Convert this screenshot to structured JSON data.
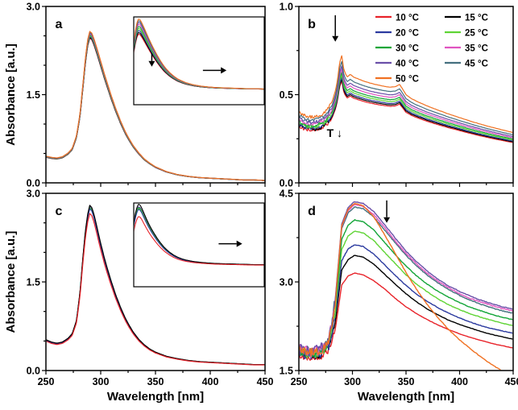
{
  "figure": {
    "xlabel": "Wavelength [nm]",
    "ylabel": "Absorbance [a.u.]",
    "background": "#ffffff"
  },
  "temperatures": [
    "10 °C",
    "15 °C",
    "20 °C",
    "25 °C",
    "30 °C",
    "35 °C",
    "40 °C",
    "45 °C",
    "50 °C"
  ],
  "colors": {
    "t10": "#e8232a",
    "t15": "#000000",
    "t20": "#2b3a9f",
    "t25": "#5fd435",
    "t30": "#13a538",
    "t35": "#e054c0",
    "t40": "#6a4fa8",
    "t45": "#44707f",
    "t50": "#f07122"
  },
  "chart_data": [
    {
      "id": "a",
      "label": "a",
      "type": "line",
      "xlabel": "Wavelength [nm]",
      "ylabel": "Absorbance [a.u.]",
      "xlim": [
        250,
        450
      ],
      "ylim": [
        0,
        3.0
      ],
      "xticks": [
        250,
        300,
        350,
        400,
        450
      ],
      "xminor": 25,
      "yticks": [
        0.0,
        1.5,
        3.0
      ],
      "ytick_labels": [
        "0.0",
        "1.5",
        "3.0"
      ],
      "yminor": 0.5,
      "show_xtick_labels": false,
      "x": [
        250,
        255,
        260,
        265,
        270,
        274,
        278,
        281,
        284,
        286,
        288,
        290,
        292,
        294,
        296,
        298,
        300,
        303,
        306,
        310,
        314,
        318,
        322,
        326,
        330,
        335,
        340,
        345,
        350,
        360,
        370,
        380,
        390,
        400,
        410,
        420,
        430,
        440,
        450
      ],
      "base_values": [
        0.45,
        0.43,
        0.42,
        0.44,
        0.5,
        0.58,
        0.8,
        1.15,
        1.7,
        2.1,
        2.4,
        2.55,
        2.52,
        2.42,
        2.3,
        2.18,
        2.05,
        1.86,
        1.68,
        1.45,
        1.24,
        1.05,
        0.88,
        0.74,
        0.62,
        0.5,
        0.4,
        0.33,
        0.27,
        0.19,
        0.14,
        0.11,
        0.09,
        0.08,
        0.07,
        0.06,
        0.05,
        0.05,
        0.04
      ],
      "series": [
        {
          "name": "10 °C",
          "color": "#e8232a",
          "scale": 0.965
        },
        {
          "name": "15 °C",
          "color": "#000000",
          "scale": 0.97
        },
        {
          "name": "20 °C",
          "color": "#2b3a9f",
          "scale": 0.976
        },
        {
          "name": "25 °C",
          "color": "#5fd435",
          "scale": 0.982
        },
        {
          "name": "30 °C",
          "color": "#13a538",
          "scale": 0.988
        },
        {
          "name": "35 °C",
          "color": "#e054c0",
          "scale": 0.994
        },
        {
          "name": "40 °C",
          "color": "#6a4fa8",
          "scale": 1.0
        },
        {
          "name": "45 °C",
          "color": "#44707f",
          "scale": 1.005
        },
        {
          "name": "50 °C",
          "color": "#f07122",
          "scale": 1.01
        }
      ],
      "inset": {
        "xlim": [
          284,
          450
        ],
        "ylim": [
          -0.55,
          2.75
        ],
        "spread_mult": 5,
        "annotations": [
          {
            "type": "arrow",
            "x1": 307,
            "y1": 1.38,
            "x2": 307,
            "y2": 0.88
          },
          {
            "type": "arrow",
            "x1": 372,
            "y1": 0.74,
            "x2": 402,
            "y2": 0.74
          }
        ]
      },
      "annotations": []
    },
    {
      "id": "b",
      "label": "b",
      "type": "line",
      "xlabel": "Wavelength [nm]",
      "ylabel": "Absorbance [a.u.]",
      "xlim": [
        250,
        450
      ],
      "ylim": [
        0,
        1.0
      ],
      "xticks": [
        250,
        300,
        350,
        400,
        450
      ],
      "xminor": 25,
      "yticks": [
        0.0,
        0.5,
        1.0
      ],
      "ytick_labels": [
        "0.0",
        "0.5",
        "1.0"
      ],
      "yminor": 0.25,
      "show_xtick_labels": false,
      "x": [
        250,
        254,
        258,
        262,
        266,
        270,
        274,
        278,
        281,
        284,
        286,
        288,
        290,
        292,
        295,
        298,
        301,
        305,
        310,
        315,
        320,
        325,
        330,
        335,
        340,
        344,
        347,
        350,
        355,
        360,
        370,
        380,
        390,
        400,
        410,
        420,
        430,
        440,
        450
      ],
      "base_values": [
        0.4,
        0.385,
        0.375,
        0.372,
        0.375,
        0.385,
        0.4,
        0.43,
        0.46,
        0.52,
        0.58,
        0.68,
        0.72,
        0.64,
        0.6,
        0.615,
        0.6,
        0.59,
        0.578,
        0.568,
        0.56,
        0.553,
        0.547,
        0.542,
        0.545,
        0.558,
        0.53,
        0.5,
        0.478,
        0.462,
        0.435,
        0.412,
        0.39,
        0.37,
        0.35,
        0.332,
        0.315,
        0.3,
        0.285
      ],
      "series": [
        {
          "name": "10 °C",
          "color": "#e8232a",
          "scale": 0.8,
          "noise": {
            "amp": 0.01,
            "below": 280
          }
        },
        {
          "name": "15 °C",
          "color": "#000000",
          "scale": 0.815,
          "noise": {
            "amp": 0.01,
            "below": 280
          }
        },
        {
          "name": "20 °C",
          "color": "#2b3a9f",
          "scale": 0.83,
          "noise": {
            "amp": 0.01,
            "below": 280
          }
        },
        {
          "name": "25 °C",
          "color": "#5fd435",
          "scale": 0.85,
          "noise": {
            "amp": 0.01,
            "below": 280
          }
        },
        {
          "name": "30 °C",
          "color": "#13a538",
          "scale": 0.87,
          "noise": {
            "amp": 0.01,
            "below": 280
          }
        },
        {
          "name": "35 °C",
          "color": "#e054c0",
          "scale": 0.895,
          "noise": {
            "amp": 0.01,
            "below": 280
          }
        },
        {
          "name": "40 °C",
          "color": "#6a4fa8",
          "scale": 0.92,
          "noise": {
            "amp": 0.01,
            "below": 280
          }
        },
        {
          "name": "45 °C",
          "color": "#44707f",
          "scale": 0.955,
          "noise": {
            "amp": 0.01,
            "below": 280
          }
        },
        {
          "name": "50 °C",
          "color": "#f07122",
          "scale": 1.0,
          "noise": {
            "amp": 0.01,
            "below": 280
          }
        }
      ],
      "legend": {
        "items": [
          {
            "label": "10 °C",
            "color": "#e8232a"
          },
          {
            "label": "15 °C",
            "color": "#000000"
          },
          {
            "label": "20 °C",
            "color": "#2b3a9f"
          },
          {
            "label": "25 °C",
            "color": "#5fd435"
          },
          {
            "label": "30 °C",
            "color": "#13a538"
          },
          {
            "label": "35 °C",
            "color": "#e054c0"
          },
          {
            "label": "40 °C",
            "color": "#6a4fa8"
          },
          {
            "label": "45 °C",
            "color": "#44707f"
          },
          {
            "label": "50 °C",
            "color": "#f07122"
          }
        ]
      },
      "annotations": [
        {
          "type": "arrow",
          "x1": 284,
          "y1": 0.95,
          "x2": 284,
          "y2": 0.8
        },
        {
          "type": "text",
          "x": 276,
          "y": 0.26,
          "text": "T ↓"
        }
      ]
    },
    {
      "id": "c",
      "label": "c",
      "type": "line",
      "xlabel": "Wavelength [nm]",
      "ylabel": "Absorbance [a.u.]",
      "xlim": [
        250,
        450
      ],
      "ylim": [
        0,
        3.0
      ],
      "xticks": [
        250,
        300,
        350,
        400,
        450
      ],
      "xminor": 25,
      "yticks": [
        0.0,
        1.5,
        3.0
      ],
      "ytick_labels": [
        "0.0",
        "1.5",
        "3.0"
      ],
      "yminor": 0.5,
      "show_xtick_labels": true,
      "x": [
        250,
        255,
        260,
        265,
        270,
        274,
        278,
        281,
        284,
        286,
        288,
        290,
        292,
        294,
        296,
        298,
        300,
        303,
        306,
        310,
        314,
        318,
        322,
        326,
        330,
        335,
        340,
        345,
        350,
        360,
        370,
        380,
        390,
        400,
        410,
        420,
        430,
        440,
        450
      ],
      "base_values": [
        0.52,
        0.48,
        0.46,
        0.48,
        0.54,
        0.62,
        0.85,
        1.3,
        1.95,
        2.35,
        2.62,
        2.78,
        2.74,
        2.62,
        2.46,
        2.3,
        2.14,
        1.92,
        1.72,
        1.48,
        1.26,
        1.07,
        0.9,
        0.76,
        0.64,
        0.52,
        0.43,
        0.36,
        0.31,
        0.24,
        0.2,
        0.17,
        0.15,
        0.14,
        0.13,
        0.12,
        0.11,
        0.1,
        0.1
      ],
      "series": [
        {
          "name": "50 °C",
          "color": "#f07122",
          "scale": 0.995
        },
        {
          "name": "45 °C",
          "color": "#44707f",
          "scale": 0.993
        },
        {
          "name": "40 °C",
          "color": "#6a4fa8",
          "scale": 0.996
        },
        {
          "name": "35 °C",
          "color": "#e054c0",
          "scale": 0.99
        },
        {
          "name": "30 °C",
          "color": "#13a538",
          "scale": 0.992
        },
        {
          "name": "25 °C",
          "color": "#5fd435",
          "scale": 0.988
        },
        {
          "name": "20 °C",
          "color": "#2b3a9f",
          "scale": 0.985
        },
        {
          "name": "15 °C",
          "color": "#000000",
          "scale": 1.006
        },
        {
          "name": "10 °C",
          "color": "#e8232a",
          "scale": 0.956
        }
      ],
      "inset": {
        "xlim": [
          284,
          450
        ],
        "ylim": [
          -0.9,
          2.9
        ],
        "spread_mult": 4,
        "annotations": [
          {
            "type": "arrow",
            "x1": 392,
            "y1": 1.05,
            "x2": 422,
            "y2": 1.05
          }
        ]
      },
      "annotations": []
    },
    {
      "id": "d",
      "label": "d",
      "type": "line",
      "xlabel": "Wavelength [nm]",
      "ylabel": "Absorbance [a.u.]",
      "xlim": [
        250,
        450
      ],
      "ylim": [
        1.5,
        4.5
      ],
      "xticks": [
        250,
        300,
        350,
        400,
        450
      ],
      "xminor": 25,
      "yticks": [
        1.5,
        3.0,
        4.5
      ],
      "ytick_labels": [
        "1.5",
        "3.0",
        "4.5"
      ],
      "yminor": 0.75,
      "show_xtick_labels": true,
      "x": [
        250,
        260,
        270,
        278,
        284,
        290,
        296,
        302,
        310,
        320,
        330,
        340,
        350,
        360,
        370,
        380,
        390,
        400,
        410,
        420,
        430,
        440,
        450
      ],
      "series": [
        {
          "name": "10 °C",
          "color": "#e8232a",
          "noise": {
            "amp": 0.05,
            "below": 284
          },
          "values": [
            1.75,
            1.7,
            1.72,
            1.85,
            2.2,
            2.95,
            3.1,
            3.15,
            3.12,
            3.02,
            2.88,
            2.72,
            2.58,
            2.46,
            2.36,
            2.27,
            2.19,
            2.12,
            2.06,
            2.01,
            1.96,
            1.92,
            1.88
          ]
        },
        {
          "name": "15 °C",
          "color": "#000000",
          "noise": {
            "amp": 0.05,
            "below": 284
          },
          "values": [
            1.78,
            1.73,
            1.76,
            1.9,
            2.32,
            3.2,
            3.38,
            3.45,
            3.42,
            3.3,
            3.13,
            2.96,
            2.8,
            2.66,
            2.54,
            2.44,
            2.35,
            2.28,
            2.22,
            2.16,
            2.11,
            2.07,
            2.03
          ]
        },
        {
          "name": "20 °C",
          "color": "#2b3a9f",
          "noise": {
            "amp": 0.08,
            "below": 284
          },
          "values": [
            1.8,
            1.75,
            1.78,
            1.93,
            2.42,
            3.36,
            3.56,
            3.63,
            3.6,
            3.47,
            3.29,
            3.11,
            2.94,
            2.79,
            2.67,
            2.56,
            2.47,
            2.39,
            2.32,
            2.26,
            2.21,
            2.17,
            2.13
          ]
        },
        {
          "name": "25 °C",
          "color": "#5fd435",
          "noise": {
            "amp": 0.08,
            "below": 284
          },
          "values": [
            1.82,
            1.77,
            1.8,
            1.96,
            2.52,
            3.55,
            3.78,
            3.86,
            3.83,
            3.7,
            3.5,
            3.31,
            3.12,
            2.96,
            2.83,
            2.71,
            2.61,
            2.53,
            2.46,
            2.4,
            2.35,
            2.3,
            2.26
          ]
        },
        {
          "name": "30 °C",
          "color": "#13a538",
          "noise": {
            "amp": 0.08,
            "below": 284
          },
          "values": [
            1.84,
            1.79,
            1.82,
            1.98,
            2.6,
            3.72,
            3.96,
            4.05,
            4.02,
            3.88,
            3.67,
            3.46,
            3.27,
            3.1,
            2.96,
            2.84,
            2.74,
            2.65,
            2.57,
            2.51,
            2.45,
            2.4,
            2.36
          ]
        },
        {
          "name": "45 °C",
          "color": "#44707f",
          "noise": {
            "amp": 0.1,
            "below": 284
          },
          "values": [
            1.86,
            1.81,
            1.84,
            2.0,
            2.68,
            3.9,
            4.17,
            4.27,
            4.24,
            4.1,
            3.88,
            3.66,
            3.45,
            3.27,
            3.11,
            2.98,
            2.87,
            2.77,
            2.69,
            2.62,
            2.56,
            2.51,
            2.47
          ]
        },
        {
          "name": "35 °C",
          "color": "#e054c0",
          "noise": {
            "amp": 0.1,
            "below": 284
          },
          "values": [
            1.86,
            1.81,
            1.85,
            2.01,
            2.7,
            3.94,
            4.21,
            4.31,
            4.28,
            4.14,
            3.92,
            3.69,
            3.48,
            3.3,
            3.14,
            3.01,
            2.9,
            2.8,
            2.72,
            2.66,
            2.6,
            2.55,
            2.51
          ]
        },
        {
          "name": "40 °C",
          "color": "#6a4fa8",
          "noise": {
            "amp": 0.1,
            "below": 284
          },
          "values": [
            1.87,
            1.82,
            1.86,
            2.02,
            2.72,
            3.98,
            4.26,
            4.36,
            4.33,
            4.19,
            3.97,
            3.74,
            3.52,
            3.34,
            3.18,
            3.04,
            2.93,
            2.84,
            2.76,
            2.69,
            2.63,
            2.58,
            2.54
          ]
        },
        {
          "name": "50 °C",
          "color": "#f07122",
          "noise": {
            "amp": 0.08,
            "below": 284
          },
          "values": [
            1.85,
            1.8,
            1.83,
            1.99,
            2.66,
            3.95,
            4.23,
            4.33,
            4.29,
            4.1,
            3.8,
            3.48,
            3.16,
            2.87,
            2.61,
            2.39,
            2.19,
            2.02,
            1.87,
            1.73,
            1.6,
            1.49,
            1.39
          ]
        }
      ],
      "annotations": [
        {
          "type": "arrow",
          "x1": 332,
          "y1": 4.38,
          "x2": 332,
          "y2": 4.0
        }
      ]
    }
  ]
}
